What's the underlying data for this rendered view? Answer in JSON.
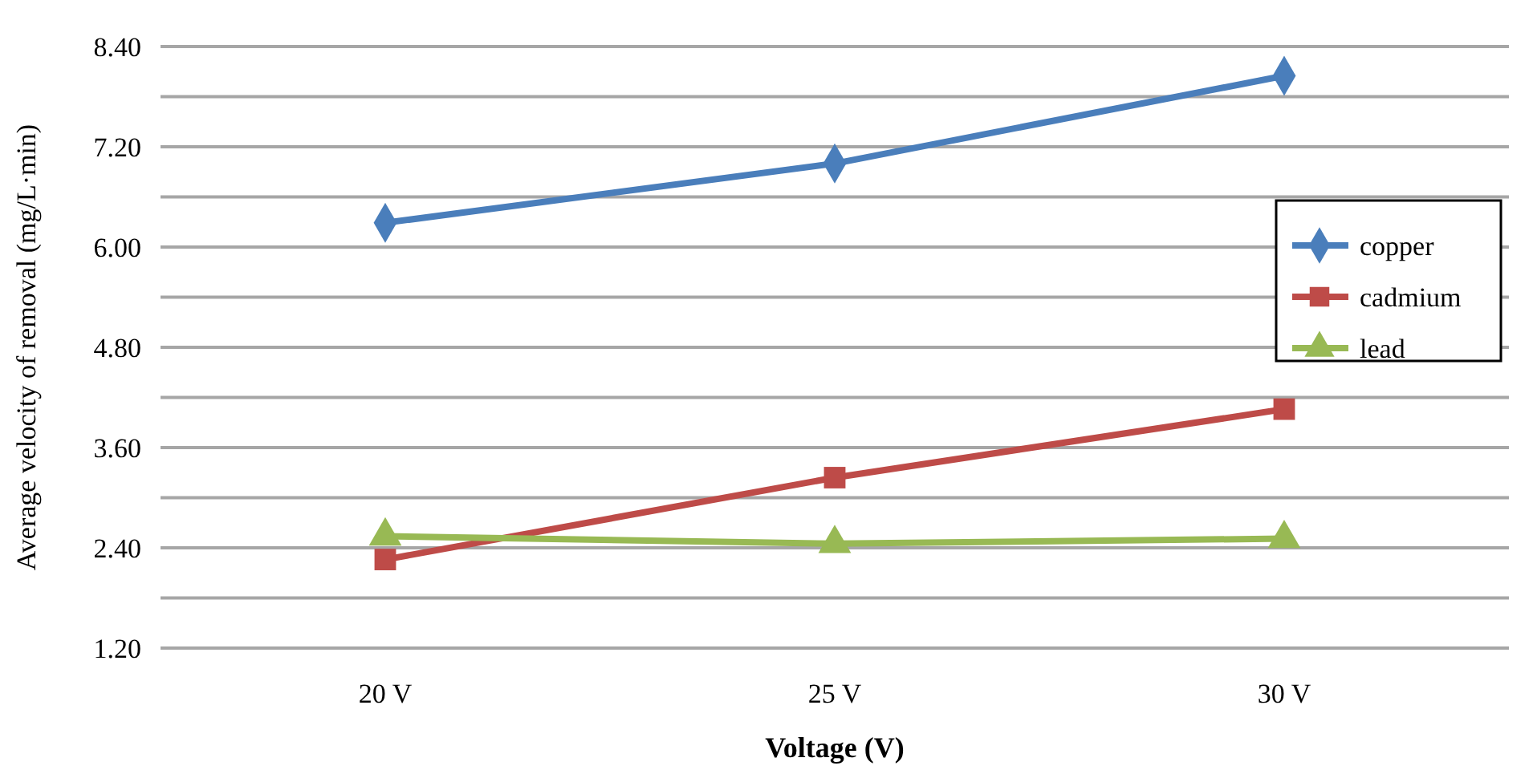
{
  "chart_data": {
    "type": "line",
    "xlabel": "Voltage (V)",
    "ylabel": "Average velocity of removal (mg/L·min)",
    "categories": [
      "20 V",
      "25 V",
      "30 V"
    ],
    "series": [
      {
        "name": "copper",
        "color": "#4a7ebb",
        "marker": "diamond",
        "values": [
          6.29,
          7.0,
          8.05
        ]
      },
      {
        "name": "cadmium",
        "color": "#be4b48",
        "marker": "square",
        "values": [
          2.26,
          3.24,
          4.06
        ]
      },
      {
        "name": "lead",
        "color": "#98b954",
        "marker": "triangle",
        "values": [
          2.54,
          2.45,
          2.51
        ]
      }
    ],
    "ylim": [
      1.2,
      8.4
    ],
    "yticks": [
      {
        "value": 1.2,
        "label": "1.20"
      },
      {
        "value": 1.8,
        "label": null
      },
      {
        "value": 2.4,
        "label": "2.40"
      },
      {
        "value": 3.0,
        "label": null
      },
      {
        "value": 3.6,
        "label": "3.60"
      },
      {
        "value": 4.2,
        "label": null
      },
      {
        "value": 4.8,
        "label": "4.80"
      },
      {
        "value": 5.4,
        "label": null
      },
      {
        "value": 6.0,
        "label": "6.00"
      },
      {
        "value": 6.6,
        "label": null
      },
      {
        "value": 7.2,
        "label": "7.20"
      },
      {
        "value": 7.8,
        "label": null
      },
      {
        "value": 8.4,
        "label": "8.40"
      }
    ],
    "grid": "y",
    "legend": "right",
    "line_style": "solid"
  }
}
